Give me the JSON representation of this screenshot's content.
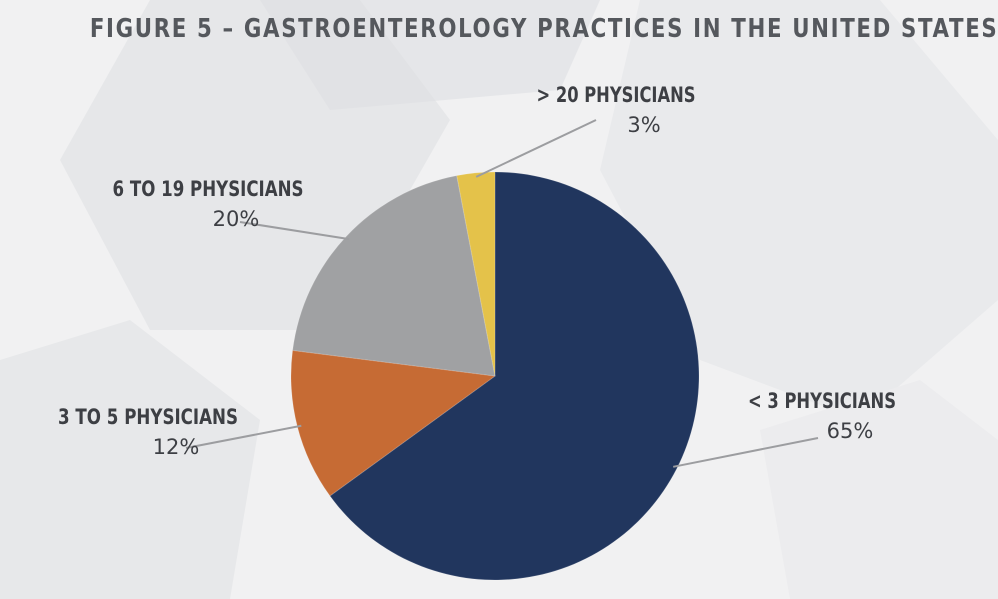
{
  "chart_data": {
    "type": "pie",
    "title": "FIGURE 5 – GASTROENTEROLOGY PRACTICES IN THE UNITED STATES",
    "slices": [
      {
        "label": "< 3 PHYSICIANS",
        "value": 65,
        "value_label": "65%",
        "color": "#21365e"
      },
      {
        "label": "3 TO 5 PHYSICIANS",
        "value": 12,
        "value_label": "12%",
        "color": "#c66b34"
      },
      {
        "label": "6 TO 19 PHYSICIANS",
        "value": 20,
        "value_label": "20%",
        "color": "#a0a1a3"
      },
      {
        "label": "> 20 PHYSICIANS",
        "value": 3,
        "value_label": "3%",
        "color": "#e4c24a"
      }
    ]
  }
}
